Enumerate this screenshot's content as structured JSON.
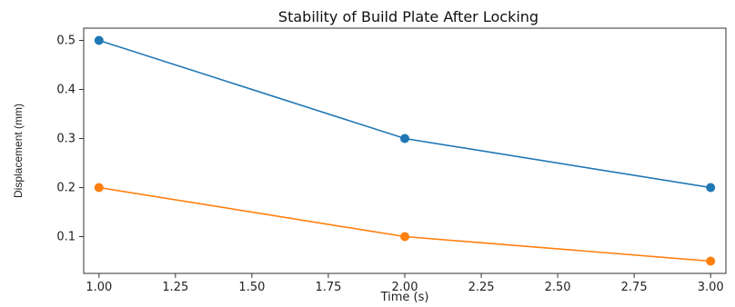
{
  "chart_data": {
    "type": "line",
    "title": "Stability of Build Plate After Locking",
    "xlabel": "Time (s)",
    "ylabel": "Displacement (mm)",
    "xlim": [
      0.95,
      3.05
    ],
    "ylim": [
      0.025,
      0.525
    ],
    "xticks": [
      "1.00",
      "1.25",
      "1.50",
      "1.75",
      "2.00",
      "2.25",
      "2.50",
      "2.75",
      "3.00"
    ],
    "yticks": [
      "0.1",
      "0.2",
      "0.3",
      "0.4",
      "0.5"
    ],
    "grid": false,
    "x": [
      1.0,
      2.0,
      3.0
    ],
    "series": [
      {
        "values": [
          0.5,
          0.3,
          0.2
        ],
        "color": "#1f77b4"
      },
      {
        "values": [
          0.2,
          0.1,
          0.05
        ],
        "color": "#ff7f0e"
      }
    ]
  }
}
